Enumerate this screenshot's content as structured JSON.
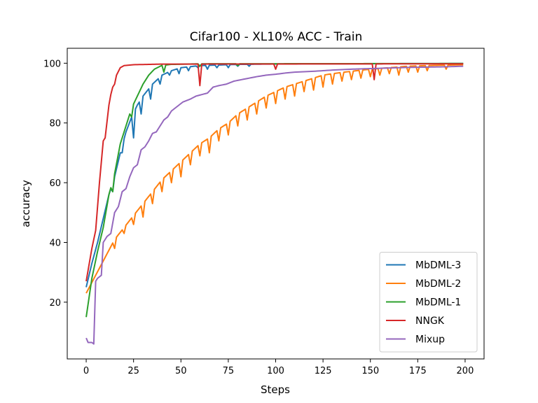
{
  "chart_data": {
    "type": "line",
    "title": "Cifar100 - XL10% ACC - Train",
    "xlabel": "Steps",
    "ylabel": "accuracy",
    "xlim": [
      -10,
      210
    ],
    "ylim": [
      1,
      105
    ],
    "xticks": [
      0,
      25,
      50,
      75,
      100,
      125,
      150,
      175,
      200
    ],
    "yticks": [
      20,
      40,
      60,
      80,
      100
    ],
    "grid": false,
    "legend_position": "lower-right",
    "x": {
      "start": 0,
      "end": 199
    },
    "series": [
      {
        "name": "MbDML-3",
        "color": "#1f77b4",
        "anchors": [
          [
            0,
            25
          ],
          [
            3,
            33
          ],
          [
            6,
            40
          ],
          [
            9,
            48
          ],
          [
            12,
            56
          ],
          [
            15,
            62
          ],
          [
            18,
            70
          ],
          [
            21,
            77
          ],
          [
            24,
            82
          ],
          [
            27,
            86
          ],
          [
            30,
            89
          ],
          [
            35,
            93
          ],
          [
            40,
            96
          ],
          [
            45,
            97.5
          ],
          [
            50,
            98.5
          ],
          [
            60,
            99.2
          ],
          [
            80,
            99.6
          ],
          [
            110,
            99.8
          ],
          [
            200,
            99.9
          ]
        ],
        "dips": [
          [
            14,
            57
          ],
          [
            19,
            70
          ],
          [
            25,
            75
          ],
          [
            29,
            83
          ],
          [
            34,
            88
          ],
          [
            39,
            93
          ],
          [
            44,
            96
          ],
          [
            49,
            96.5
          ],
          [
            54,
            97.5
          ],
          [
            59,
            98.5
          ],
          [
            64,
            98
          ],
          [
            69,
            98.5
          ],
          [
            75,
            98.5
          ],
          [
            80,
            99
          ],
          [
            86,
            99
          ]
        ]
      },
      {
        "name": "MbDML-2",
        "color": "#ff7f0e",
        "anchors": [
          [
            0,
            23
          ],
          [
            5,
            29
          ],
          [
            10,
            35
          ],
          [
            15,
            41
          ],
          [
            20,
            45
          ],
          [
            25,
            49
          ],
          [
            30,
            53
          ],
          [
            35,
            57
          ],
          [
            40,
            61
          ],
          [
            45,
            64
          ],
          [
            50,
            67
          ],
          [
            55,
            70
          ],
          [
            60,
            73
          ],
          [
            65,
            75
          ],
          [
            70,
            78
          ],
          [
            75,
            80
          ],
          [
            80,
            83
          ],
          [
            85,
            85
          ],
          [
            90,
            87
          ],
          [
            95,
            89
          ],
          [
            100,
            90.5
          ],
          [
            105,
            92
          ],
          [
            110,
            93
          ],
          [
            115,
            94
          ],
          [
            120,
            95
          ],
          [
            125,
            96
          ],
          [
            130,
            96.5
          ],
          [
            140,
            97.3
          ],
          [
            150,
            98
          ],
          [
            160,
            98.5
          ],
          [
            170,
            99
          ],
          [
            185,
            99.3
          ],
          [
            200,
            99.5
          ]
        ],
        "dips": [
          [
            15,
            38
          ],
          [
            20,
            43
          ],
          [
            25,
            46
          ],
          [
            30,
            48.5
          ],
          [
            35,
            53
          ],
          [
            40,
            57
          ],
          [
            45,
            60
          ],
          [
            50,
            62
          ],
          [
            55,
            66
          ],
          [
            60,
            69
          ],
          [
            65,
            70
          ],
          [
            70,
            74
          ],
          [
            75,
            76
          ],
          [
            80,
            79
          ],
          [
            85,
            81
          ],
          [
            90,
            83
          ],
          [
            95,
            85
          ],
          [
            100,
            86.5
          ],
          [
            105,
            88
          ],
          [
            110,
            89
          ],
          [
            115,
            90.5
          ],
          [
            120,
            91
          ],
          [
            125,
            92
          ],
          [
            130,
            93
          ],
          [
            135,
            94
          ],
          [
            140,
            94.5
          ],
          [
            145,
            95
          ],
          [
            150,
            95.5
          ],
          [
            155,
            96
          ],
          [
            160,
            96.5
          ],
          [
            165,
            96
          ],
          [
            170,
            97
          ],
          [
            175,
            97
          ],
          [
            180,
            97.5
          ],
          [
            190,
            98
          ]
        ]
      },
      {
        "name": "MbDML-1",
        "color": "#2ca02c",
        "anchors": [
          [
            0,
            15
          ],
          [
            3,
            28
          ],
          [
            6,
            37
          ],
          [
            9,
            45
          ],
          [
            12,
            56
          ],
          [
            15,
            63
          ],
          [
            18,
            73
          ],
          [
            21,
            79
          ],
          [
            24,
            85
          ],
          [
            27,
            89
          ],
          [
            30,
            93
          ],
          [
            33,
            96
          ],
          [
            36,
            98
          ],
          [
            40,
            99.3
          ],
          [
            45,
            99.6
          ],
          [
            60,
            99.8
          ],
          [
            200,
            99.9
          ]
        ],
        "dips": [
          [
            14,
            57
          ],
          [
            24,
            82
          ],
          [
            41,
            97
          ],
          [
            60,
            99
          ],
          [
            80,
            99.2
          ]
        ]
      },
      {
        "name": "NNGK",
        "color": "#d62728",
        "anchors": [
          [
            0,
            27
          ],
          [
            3,
            38
          ],
          [
            5,
            44
          ],
          [
            7,
            60
          ],
          [
            9,
            74
          ],
          [
            10,
            75
          ],
          [
            12,
            86
          ],
          [
            14,
            93
          ],
          [
            16,
            96
          ],
          [
            18,
            98.5
          ],
          [
            20,
            99.2
          ],
          [
            25,
            99.5
          ],
          [
            40,
            99.7
          ],
          [
            200,
            99.8
          ]
        ],
        "dips": [
          [
            14,
            92
          ],
          [
            15,
            93
          ],
          [
            60,
            92.5
          ],
          [
            100,
            98
          ],
          [
            152,
            94.5
          ]
        ]
      },
      {
        "name": "Mixup",
        "color": "#9467bd",
        "anchors": [
          [
            0,
            8
          ],
          [
            1,
            6.5
          ],
          [
            3,
            6.5
          ],
          [
            4,
            6
          ],
          [
            5,
            27
          ],
          [
            6,
            28
          ],
          [
            8,
            29
          ],
          [
            9,
            40
          ],
          [
            11,
            42
          ],
          [
            13,
            43
          ],
          [
            15,
            50
          ],
          [
            17,
            52
          ],
          [
            19,
            57
          ],
          [
            21,
            58
          ],
          [
            23,
            62
          ],
          [
            25,
            65
          ],
          [
            27,
            66
          ],
          [
            29,
            71
          ],
          [
            31,
            72
          ],
          [
            33,
            74
          ],
          [
            35,
            76.5
          ],
          [
            37,
            77
          ],
          [
            39,
            79
          ],
          [
            41,
            81
          ],
          [
            43,
            82
          ],
          [
            45,
            84
          ],
          [
            47,
            85
          ],
          [
            49,
            86
          ],
          [
            51,
            87
          ],
          [
            53,
            87.5
          ],
          [
            55,
            88
          ],
          [
            58,
            89
          ],
          [
            61,
            89.5
          ],
          [
            64,
            90
          ],
          [
            67,
            92
          ],
          [
            70,
            92.5
          ],
          [
            74,
            93
          ],
          [
            78,
            94
          ],
          [
            82,
            94.5
          ],
          [
            86,
            95
          ],
          [
            90,
            95.5
          ],
          [
            95,
            96
          ],
          [
            100,
            96.3
          ],
          [
            105,
            96.7
          ],
          [
            110,
            97
          ],
          [
            120,
            97.3
          ],
          [
            130,
            97.7
          ],
          [
            140,
            98
          ],
          [
            150,
            98.2
          ],
          [
            160,
            98.4
          ],
          [
            170,
            98.6
          ],
          [
            180,
            98.7
          ],
          [
            190,
            98.8
          ],
          [
            199,
            99
          ]
        ],
        "dips": []
      }
    ]
  }
}
